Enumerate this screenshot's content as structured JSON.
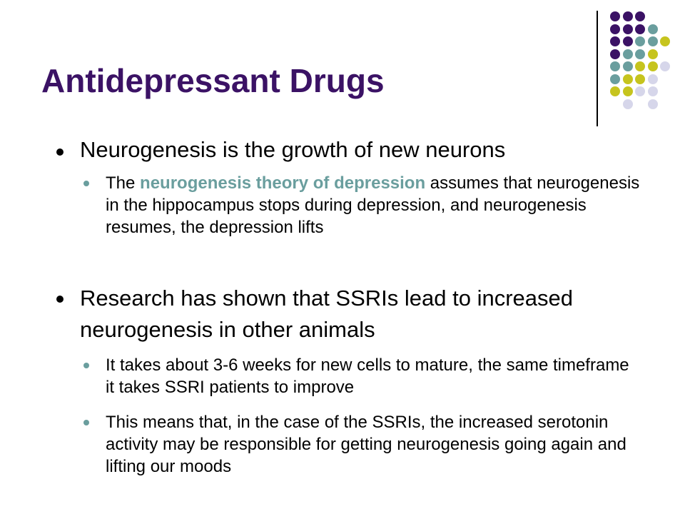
{
  "slide": {
    "title": "Antidepressant Drugs",
    "bullets": [
      {
        "text": "Neurogenesis is the growth of new neurons",
        "sub": [
          {
            "pre": "The ",
            "highlight": "neurogenesis theory of depression",
            "post": " assumes that neurogenesis in the hippocampus stops during depression, and neurogenesis resumes, the depression lifts"
          }
        ]
      },
      {
        "text": "Research has shown that SSRIs lead to increased neurogenesis in other animals",
        "sub": [
          {
            "pre": "It takes about 3-6 weeks for new cells to mature, the same timeframe it takes SSRI patients to improve"
          },
          {
            "pre": "This means that, in the case of the SSRIs, the increased serotonin activity may be responsible for getting neurogenesis going again and lifting our moods"
          }
        ]
      }
    ]
  },
  "colors": {
    "title": "#3b1265",
    "highlight": "#6a9e9e",
    "purple": "#3b1265",
    "teal": "#6a9e9e",
    "yellow": "#c6c41e",
    "lavender": "#d6d6ea"
  },
  "decoration": {
    "dot_grid": [
      "PPP__",
      "PPPT_",
      "PPTTY",
      "PTTY_",
      "TTYYL",
      "TYYL_",
      "YYLL_",
      "_L_L_"
    ]
  }
}
